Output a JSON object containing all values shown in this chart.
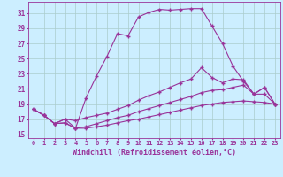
{
  "xlabel": "Windchill (Refroidissement éolien,°C)",
  "bg_color": "#cceeff",
  "grid_color": "#aacccc",
  "line_color": "#993399",
  "xlim": [
    -0.5,
    23.5
  ],
  "ylim": [
    14.5,
    32.5
  ],
  "xticks": [
    0,
    1,
    2,
    3,
    4,
    5,
    6,
    7,
    8,
    9,
    10,
    11,
    12,
    13,
    14,
    15,
    16,
    17,
    18,
    19,
    20,
    21,
    22,
    23
  ],
  "yticks": [
    15,
    17,
    19,
    21,
    23,
    25,
    27,
    29,
    31
  ],
  "line1_x": [
    0,
    1,
    2,
    3,
    4,
    5,
    6,
    7,
    8,
    9,
    10,
    11,
    12,
    13,
    14,
    15,
    16,
    17,
    18,
    19,
    20,
    21,
    22,
    23
  ],
  "line1_y": [
    18.3,
    17.5,
    16.4,
    17.0,
    15.8,
    19.8,
    22.7,
    25.3,
    28.3,
    28.0,
    30.5,
    31.1,
    31.5,
    31.4,
    31.5,
    31.6,
    31.6,
    29.3,
    27.0,
    24.0,
    22.0,
    20.3,
    21.2,
    19.0
  ],
  "line2_x": [
    0,
    1,
    2,
    3,
    4,
    5,
    6,
    7,
    8,
    9,
    10,
    11,
    12,
    13,
    14,
    15,
    16,
    17,
    18,
    19,
    20,
    21,
    22,
    23
  ],
  "line2_y": [
    18.3,
    17.5,
    16.4,
    17.0,
    16.8,
    17.2,
    17.5,
    17.8,
    18.3,
    18.8,
    19.5,
    20.1,
    20.6,
    21.2,
    21.8,
    22.3,
    23.8,
    22.5,
    21.8,
    22.3,
    22.2,
    20.3,
    21.2,
    19.0
  ],
  "line3_x": [
    0,
    1,
    2,
    3,
    4,
    5,
    6,
    7,
    8,
    9,
    10,
    11,
    12,
    13,
    14,
    15,
    16,
    17,
    18,
    19,
    20,
    21,
    22,
    23
  ],
  "line3_y": [
    18.3,
    17.5,
    16.4,
    16.5,
    15.8,
    16.0,
    16.4,
    16.8,
    17.2,
    17.5,
    18.0,
    18.4,
    18.8,
    19.2,
    19.6,
    20.0,
    20.5,
    20.8,
    20.9,
    21.2,
    21.5,
    20.3,
    20.3,
    19.0
  ],
  "line4_x": [
    0,
    1,
    2,
    3,
    4,
    5,
    6,
    7,
    8,
    9,
    10,
    11,
    12,
    13,
    14,
    15,
    16,
    17,
    18,
    19,
    20,
    21,
    22,
    23
  ],
  "line4_y": [
    18.3,
    17.5,
    16.4,
    16.5,
    15.8,
    15.8,
    16.0,
    16.2,
    16.5,
    16.8,
    17.0,
    17.3,
    17.6,
    17.9,
    18.2,
    18.5,
    18.8,
    19.0,
    19.2,
    19.3,
    19.4,
    19.3,
    19.2,
    19.0
  ],
  "marker": "+",
  "markersize": 3,
  "linewidth": 0.8,
  "tick_fontsize": 5,
  "label_fontsize": 6
}
